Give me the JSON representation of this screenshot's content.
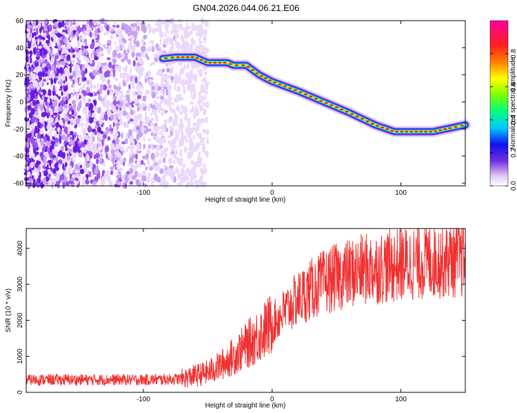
{
  "title": "GN04.2026.044.06.21.E06",
  "chart_data": [
    {
      "type": "heatmap",
      "xlabel": "Height of straight line (km)",
      "ylabel": "Frequency (Hz)",
      "xlim": [
        -191,
        150
      ],
      "ylim": [
        -62,
        60
      ],
      "xticks": [
        -100,
        0,
        100
      ],
      "yticks": [
        -60,
        -40,
        -20,
        0,
        20,
        40,
        60
      ],
      "colorbar": {
        "label": "Normalized spectral amplitude",
        "ticks": [
          0.0,
          0.2,
          0.4,
          0.6,
          0.8
        ],
        "range": [
          0,
          1
        ]
      },
      "noise_region_x": [
        -191,
        -50
      ],
      "ridge": [
        {
          "x": -85,
          "y": 32
        },
        {
          "x": -75,
          "y": 33
        },
        {
          "x": -60,
          "y": 33
        },
        {
          "x": -50,
          "y": 29
        },
        {
          "x": -35,
          "y": 29
        },
        {
          "x": -30,
          "y": 27
        },
        {
          "x": -20,
          "y": 27
        },
        {
          "x": -10,
          "y": 20
        },
        {
          "x": 0,
          "y": 15
        },
        {
          "x": 20,
          "y": 8
        },
        {
          "x": 40,
          "y": 0
        },
        {
          "x": 60,
          "y": -8
        },
        {
          "x": 80,
          "y": -17
        },
        {
          "x": 95,
          "y": -22
        },
        {
          "x": 110,
          "y": -22
        },
        {
          "x": 125,
          "y": -22
        },
        {
          "x": 140,
          "y": -19
        },
        {
          "x": 150,
          "y": -17
        }
      ]
    },
    {
      "type": "line",
      "xlabel": "Height of straight line (km)",
      "ylabel": "SNR (10 * v/v)",
      "xlim": [
        -191,
        150
      ],
      "ylim": [
        0,
        4550
      ],
      "xticks": [
        -100,
        0,
        100
      ],
      "yticks": [
        0,
        1000,
        2000,
        3000,
        4000
      ],
      "color": "#f03030",
      "series": [
        {
          "x": [
            -191,
            -150,
            -100,
            -80,
            -70,
            -50,
            -40,
            -30,
            -20,
            -10,
            0,
            10,
            20,
            30,
            40,
            50,
            60,
            70,
            80,
            90,
            100,
            120,
            140,
            150
          ],
          "values": [
            350,
            350,
            350,
            360,
            380,
            550,
            750,
            1000,
            1300,
            1600,
            1900,
            2250,
            2600,
            2850,
            3050,
            3200,
            3300,
            3400,
            3450,
            3500,
            3550,
            3650,
            3700,
            3700
          ]
        }
      ]
    }
  ]
}
